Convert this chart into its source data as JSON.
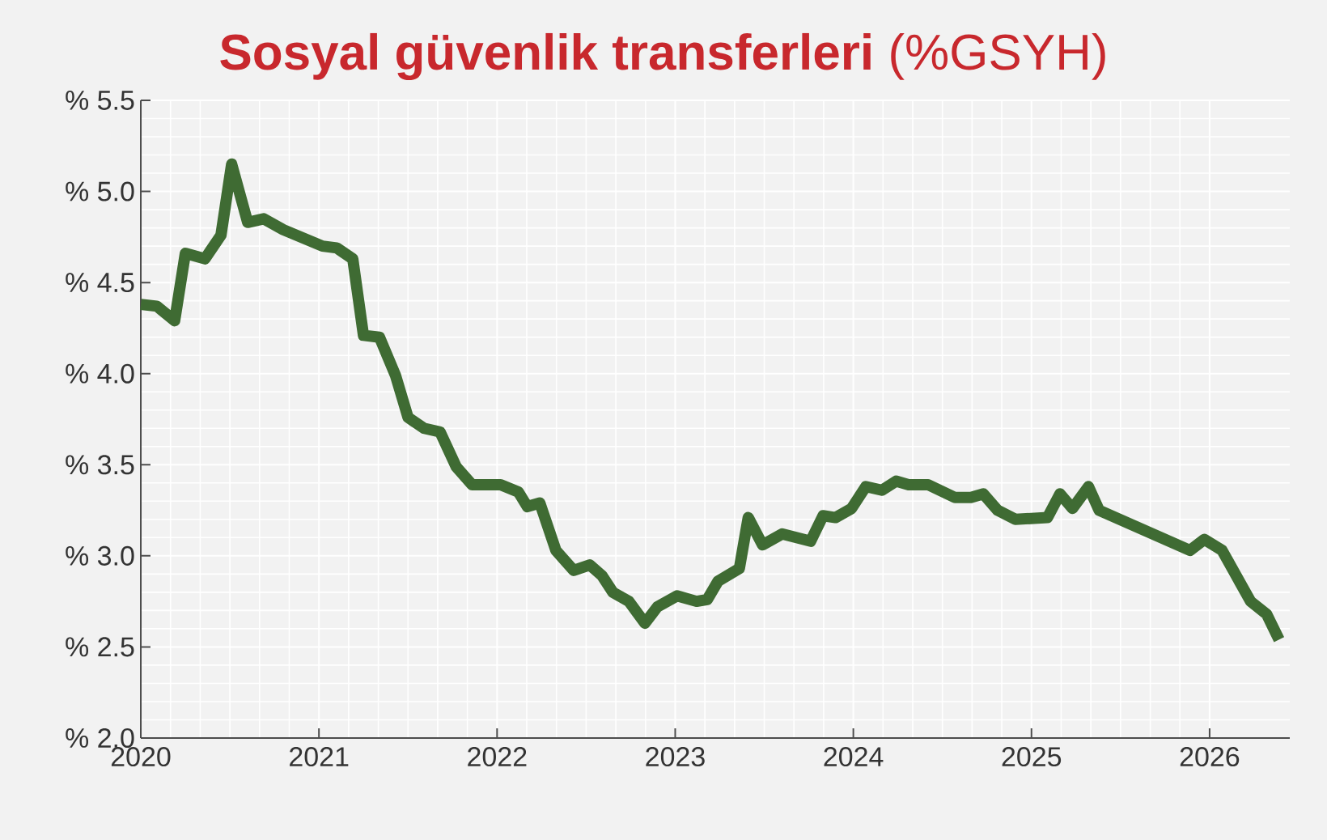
{
  "chart_data": {
    "type": "line",
    "title": "**Sosyal güvenlik transferleri** (%GSYH)",
    "x": [
      2020.0,
      2020.09,
      2020.19,
      2020.25,
      2020.36,
      2020.45,
      2020.51,
      2020.6,
      2020.69,
      2020.8,
      2021.02,
      2021.1,
      2021.19,
      2021.25,
      2021.34,
      2021.43,
      2021.5,
      2021.59,
      2021.68,
      2021.77,
      2021.86,
      2022.02,
      2022.12,
      2022.17,
      2022.24,
      2022.33,
      2022.43,
      2022.52,
      2022.59,
      2022.65,
      2022.74,
      2022.83,
      2022.9,
      2023.01,
      2023.12,
      2023.18,
      2023.24,
      2023.36,
      2023.41,
      2023.49,
      2023.6,
      2023.76,
      2023.83,
      2023.9,
      2023.99,
      2024.07,
      2024.16,
      2024.24,
      2024.31,
      2024.42,
      2024.57,
      2024.66,
      2024.73,
      2024.81,
      2024.91,
      2025.09,
      2025.16,
      2025.23,
      2025.32,
      2025.38,
      2025.89,
      2025.97,
      2026.07,
      2026.15,
      2026.23,
      2026.32,
      2026.39
    ],
    "series": [
      {
        "color": "#3f6b33",
        "values": [
          4.38,
          4.37,
          4.29,
          4.66,
          4.63,
          4.76,
          5.15,
          4.83,
          4.85,
          4.79,
          4.7,
          4.69,
          4.63,
          4.21,
          4.2,
          3.99,
          3.76,
          3.7,
          3.68,
          3.49,
          3.39,
          3.39,
          3.35,
          3.27,
          3.29,
          3.03,
          2.92,
          2.95,
          2.89,
          2.8,
          2.75,
          2.63,
          2.72,
          2.78,
          2.75,
          2.76,
          2.86,
          2.93,
          3.21,
          3.06,
          3.12,
          3.08,
          3.22,
          3.21,
          3.26,
          3.38,
          3.36,
          3.41,
          3.39,
          3.39,
          3.32,
          3.32,
          3.34,
          3.25,
          3.2,
          3.21,
          3.34,
          3.26,
          3.38,
          3.25,
          3.03,
          3.09,
          3.03,
          2.89,
          2.75,
          2.68,
          2.54
        ]
      }
    ],
    "xlim": [
      2020,
      2026.45
    ],
    "xticks": [
      2020,
      2021,
      2022,
      2023,
      2024,
      2025,
      2026
    ],
    "ylim": [
      2.0,
      5.5
    ],
    "yticks": [
      {
        "value": 2.0,
        "label": "% 2.0"
      },
      {
        "value": 2.5,
        "label": "% 2.5"
      },
      {
        "value": 3.0,
        "label": "% 3.0"
      },
      {
        "value": 3.5,
        "label": "% 3.5"
      },
      {
        "value": 4.0,
        "label": "% 4.0"
      },
      {
        "value": 4.5,
        "label": "% 4.5"
      },
      {
        "value": 5.0,
        "label": "% 5.0"
      },
      {
        "value": 5.5,
        "label": "% 5.5"
      }
    ],
    "grid": true
  }
}
